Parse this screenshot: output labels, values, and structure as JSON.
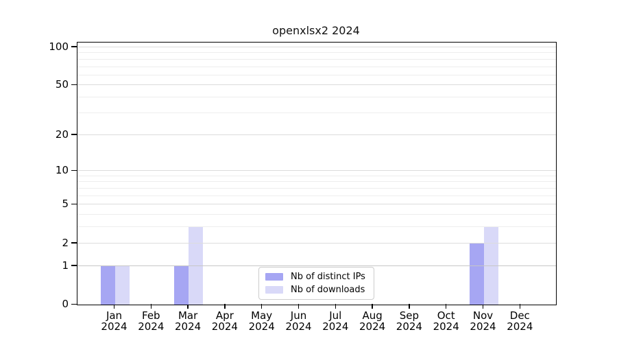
{
  "chart_data": {
    "type": "bar",
    "title": "openxlsx2 2024",
    "categories": [
      "Jan 2024",
      "Feb 2024",
      "Mar 2024",
      "Apr 2024",
      "May 2024",
      "Jun 2024",
      "Jul 2024",
      "Aug 2024",
      "Sep 2024",
      "Oct 2024",
      "Nov 2024",
      "Dec 2024"
    ],
    "x_axis": {
      "months": [
        {
          "month": "Jan",
          "year": "2024"
        },
        {
          "month": "Feb",
          "year": "2024"
        },
        {
          "month": "Mar",
          "year": "2024"
        },
        {
          "month": "Apr",
          "year": "2024"
        },
        {
          "month": "May",
          "year": "2024"
        },
        {
          "month": "Jun",
          "year": "2024"
        },
        {
          "month": "Jul",
          "year": "2024"
        },
        {
          "month": "Aug",
          "year": "2024"
        },
        {
          "month": "Sep",
          "year": "2024"
        },
        {
          "month": "Oct",
          "year": "2024"
        },
        {
          "month": "Nov",
          "year": "2024"
        },
        {
          "month": "Dec",
          "year": "2024"
        }
      ]
    },
    "y_axis": {
      "scale": "log1p",
      "ticks": [
        0,
        1,
        2,
        5,
        10,
        20,
        50,
        100
      ],
      "minor_ticks": [
        3,
        4,
        6,
        7,
        8,
        9,
        30,
        40,
        60,
        70,
        80,
        90
      ],
      "max": 109
    },
    "series": [
      {
        "name": "Nb of distinct IPs",
        "color": "#a6a6f3",
        "values": [
          1,
          0,
          1,
          0,
          0,
          0,
          0,
          0,
          0,
          0,
          2,
          0
        ]
      },
      {
        "name": "Nb of downloads",
        "color": "#d9d9f8",
        "values": [
          1,
          0,
          3,
          0,
          0,
          0,
          0,
          0,
          0,
          0,
          3,
          0
        ]
      }
    ],
    "legend": {
      "position": "inside-bottom-center"
    },
    "grid": true
  },
  "colors": {
    "grid_major": "#dcdcdc",
    "grid_unit_line": "#c6c6c6",
    "grid_minor": "#ededed",
    "axis": "#000000",
    "background": "#ffffff"
  }
}
